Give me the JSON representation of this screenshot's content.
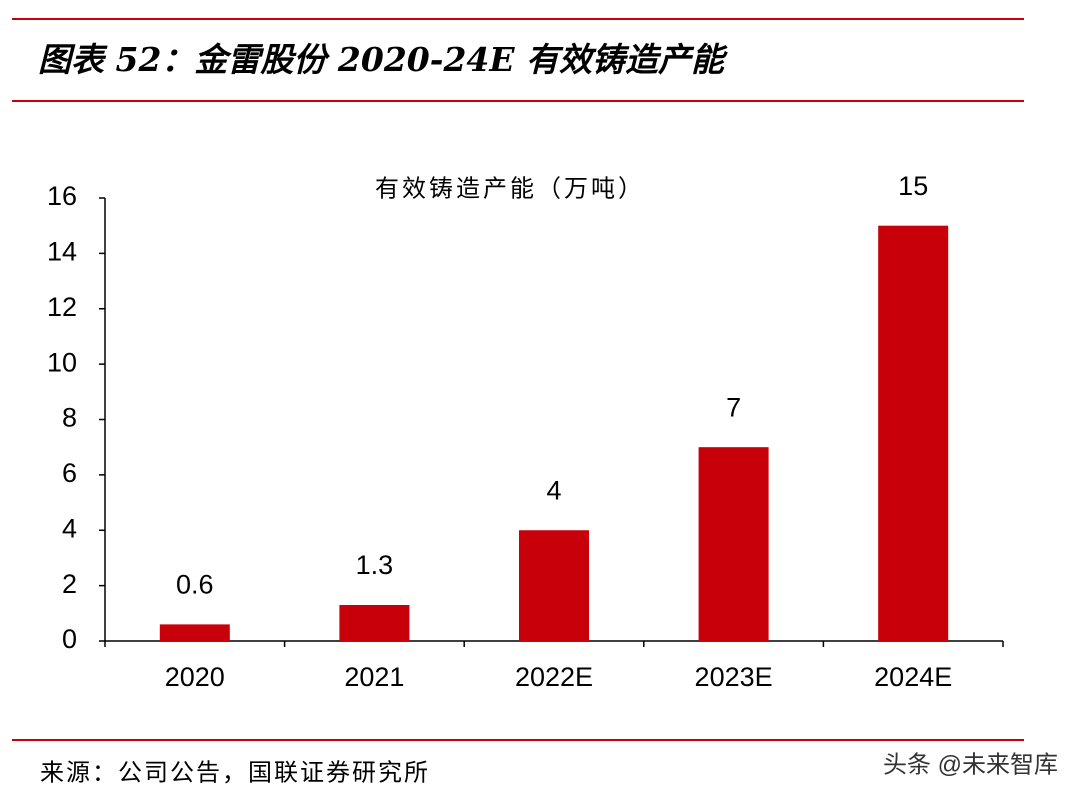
{
  "chart_data": {
    "type": "bar",
    "title": "图表 52：金雷股份 2020-24E 有效铸造产能",
    "categories": [
      "2020",
      "2021",
      "2022E",
      "2023E",
      "2024E"
    ],
    "series": [
      {
        "name": "有效铸造产能（万吨）",
        "color": "#c8000a",
        "values": [
          0.6,
          1.3,
          4,
          7,
          15
        ]
      }
    ],
    "ylim": [
      0,
      16
    ],
    "yticks": [
      0,
      2,
      4,
      6,
      8,
      10,
      12,
      14,
      16
    ],
    "grid": false
  },
  "source": "来源：公司公告，国联证券研究所",
  "watermark": "头条 @未来智库"
}
